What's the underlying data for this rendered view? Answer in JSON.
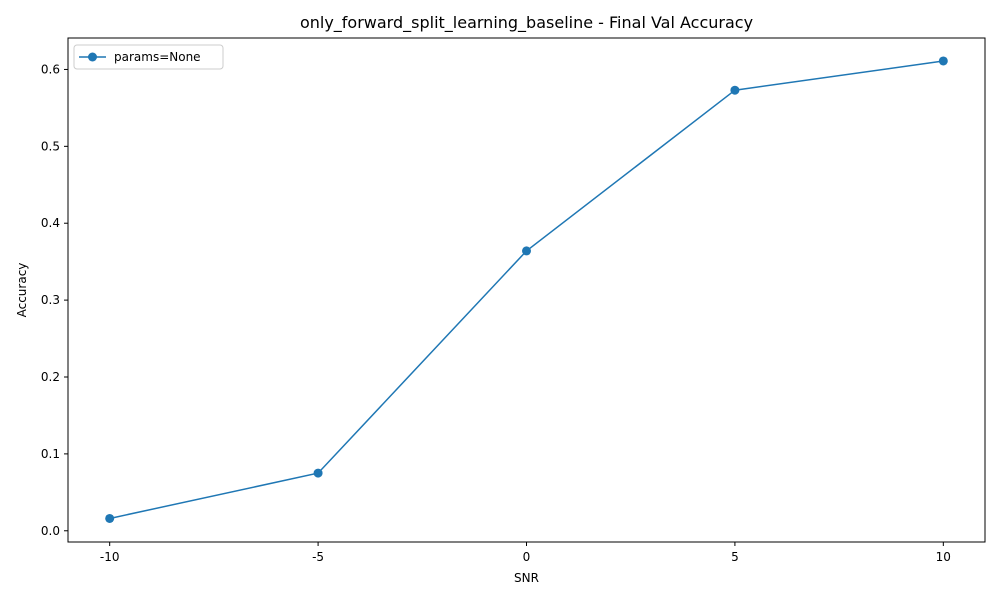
{
  "chart_data": {
    "type": "line",
    "title": "only_forward_split_learning_baseline - Final Val Accuracy",
    "xlabel": "SNR",
    "ylabel": "Accuracy",
    "categories": [
      "-10",
      "-5",
      "0",
      "5",
      "10"
    ],
    "x": [
      -10,
      -5,
      0,
      5,
      10
    ],
    "ylim": [
      -0.0146,
      0.6409
    ],
    "yticks": [
      0.0,
      0.1,
      0.2,
      0.3,
      0.4,
      0.5,
      0.6
    ],
    "ytick_labels": [
      "0.0",
      "0.1",
      "0.2",
      "0.3",
      "0.4",
      "0.5",
      "0.6"
    ],
    "grid": false,
    "legend_position": "top-left",
    "series": [
      {
        "name": "params=None",
        "marker": "circle",
        "color": "#1f77b4",
        "values": [
          0.016,
          0.075,
          0.364,
          0.573,
          0.611
        ]
      }
    ]
  }
}
